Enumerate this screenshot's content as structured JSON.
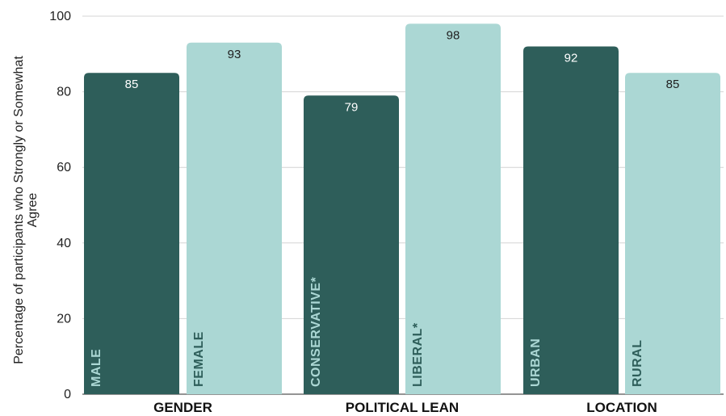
{
  "chart_data": {
    "type": "bar",
    "title": "",
    "xlabel": "",
    "ylabel": [
      "Percentage of participants who Strongly or Somewhat",
      "Agree"
    ],
    "ylim": [
      0,
      100
    ],
    "yticks": [
      0,
      20,
      40,
      60,
      80,
      100
    ],
    "grid": true,
    "colors": {
      "dark": "#2e5e5a",
      "light": "#abd7d4",
      "dark_text": "#abd7d4",
      "light_text": "#2e5e5a"
    },
    "groups": [
      {
        "label": "GENDER",
        "bars": [
          {
            "category": "MALE",
            "value": 85,
            "color": "dark"
          },
          {
            "category": "FEMALE",
            "value": 93,
            "color": "light"
          }
        ]
      },
      {
        "label": "POLITICAL LEAN",
        "bars": [
          {
            "category": "CONSERVATIVE*",
            "value": 79,
            "color": "dark"
          },
          {
            "category": "LIBERAL*",
            "value": 98,
            "color": "light"
          }
        ]
      },
      {
        "label": "LOCATION",
        "bars": [
          {
            "category": "URBAN",
            "value": 92,
            "color": "dark"
          },
          {
            "category": "RURAL",
            "value": 85,
            "color": "light"
          }
        ]
      }
    ]
  }
}
